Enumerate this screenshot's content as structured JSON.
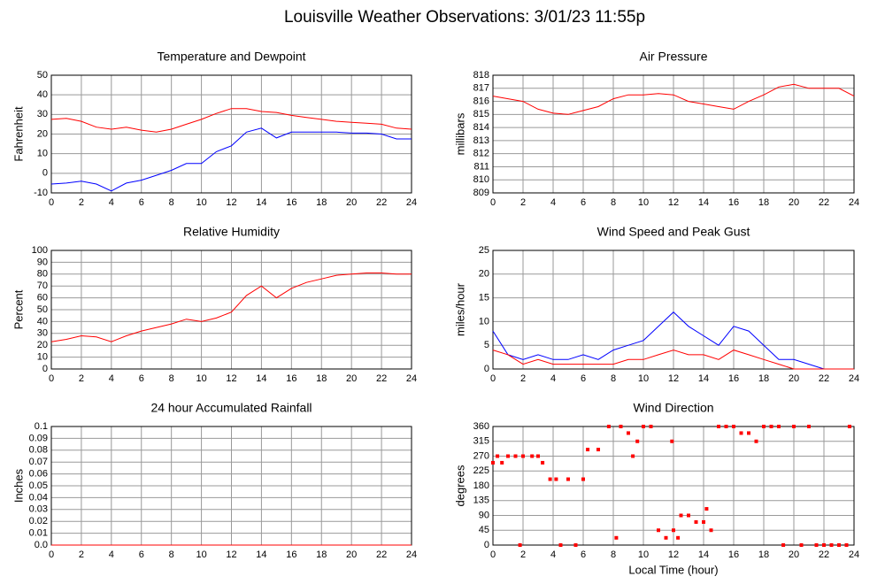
{
  "title": "Louisville Weather Observations: 3/01/23 11:55p",
  "xlabel": "Local Time (hour)",
  "chart_data": [
    {
      "type": "line",
      "title": "Temperature and Dewpoint",
      "ylabel": "Fahrenheit",
      "x": [
        0,
        1,
        2,
        3,
        4,
        5,
        6,
        7,
        8,
        9,
        10,
        11,
        12,
        13,
        14,
        15,
        16,
        17,
        18,
        19,
        20,
        21,
        22,
        23,
        24
      ],
      "series": [
        {
          "color": "#ff0000",
          "values": [
            27.5,
            28,
            26.5,
            23.5,
            22.5,
            23.5,
            22,
            21,
            22.5,
            25,
            27.5,
            30.5,
            33,
            33,
            31.5,
            31,
            29.5,
            28.5,
            27.5,
            26.5,
            26,
            25.5,
            25,
            23,
            22.5
          ]
        },
        {
          "color": "#0000ff",
          "values": [
            -5.5,
            -5,
            -4,
            -5.5,
            -9,
            -5,
            -3.5,
            -1,
            1.5,
            5,
            5,
            11,
            14,
            21,
            23,
            18,
            21,
            21,
            21,
            21,
            20.5,
            20.5,
            20,
            17.5,
            17.5
          ]
        }
      ],
      "xlim": [
        0,
        24
      ],
      "xticks": [
        0,
        2,
        4,
        6,
        8,
        10,
        12,
        14,
        16,
        18,
        20,
        22,
        24
      ],
      "ylim": [
        -10,
        50
      ],
      "yticks": [
        -10,
        0,
        10,
        20,
        30,
        40,
        50
      ],
      "grid": true
    },
    {
      "type": "line",
      "title": "Air Pressure",
      "ylabel": "millibars",
      "x": [
        0,
        1,
        2,
        3,
        4,
        5,
        6,
        7,
        8,
        9,
        10,
        11,
        12,
        13,
        14,
        15,
        16,
        17,
        18,
        19,
        20,
        21,
        22,
        23,
        24
      ],
      "series": [
        {
          "color": "#ff0000",
          "values": [
            816.4,
            816.2,
            816,
            815.4,
            815.1,
            815,
            815.3,
            815.6,
            816.2,
            816.5,
            816.5,
            816.6,
            816.5,
            816,
            815.8,
            815.6,
            815.4,
            816,
            816.5,
            817.1,
            817.3,
            817,
            817,
            817,
            816.4
          ]
        }
      ],
      "xlim": [
        0,
        24
      ],
      "xticks": [
        0,
        2,
        4,
        6,
        8,
        10,
        12,
        14,
        16,
        18,
        20,
        22,
        24
      ],
      "ylim": [
        809,
        818
      ],
      "yticks": [
        809,
        810,
        811,
        812,
        813,
        814,
        815,
        816,
        817,
        818
      ],
      "grid": true
    },
    {
      "type": "line",
      "title": "Relative Humidity",
      "ylabel": "Percent",
      "x": [
        0,
        1,
        2,
        3,
        4,
        5,
        6,
        7,
        8,
        9,
        10,
        11,
        12,
        13,
        14,
        15,
        16,
        17,
        18,
        19,
        20,
        21,
        22,
        23,
        24
      ],
      "series": [
        {
          "color": "#ff0000",
          "values": [
            23,
            25,
            28,
            27,
            23,
            28,
            32,
            35,
            38,
            42,
            40,
            43,
            48,
            62,
            70,
            60,
            68,
            73,
            76,
            79,
            80,
            81,
            81,
            80,
            80
          ]
        }
      ],
      "xlim": [
        0,
        24
      ],
      "xticks": [
        0,
        2,
        4,
        6,
        8,
        10,
        12,
        14,
        16,
        18,
        20,
        22,
        24
      ],
      "ylim": [
        0,
        100
      ],
      "yticks": [
        0,
        10,
        20,
        30,
        40,
        50,
        60,
        70,
        80,
        90,
        100
      ],
      "grid": true
    },
    {
      "type": "line",
      "title": "Wind Speed and Peak Gust",
      "ylabel": "miles/hour",
      "x": [
        0,
        1,
        2,
        3,
        4,
        5,
        6,
        7,
        8,
        9,
        10,
        11,
        12,
        13,
        14,
        15,
        16,
        17,
        18,
        19,
        20,
        21,
        22,
        23,
        24
      ],
      "series": [
        {
          "color": "#0000ff",
          "values": [
            8,
            3,
            2,
            3,
            2,
            2,
            3,
            2,
            4,
            5,
            6,
            9,
            12,
            9,
            7,
            5,
            9,
            8,
            5,
            2,
            2,
            1,
            0,
            0,
            0
          ]
        },
        {
          "color": "#ff0000",
          "values": [
            4,
            3,
            1,
            2,
            1,
            1,
            1,
            1,
            1,
            2,
            2,
            3,
            4,
            3,
            3,
            2,
            4,
            3,
            2,
            1,
            0,
            0,
            0,
            0,
            0
          ]
        }
      ],
      "xlim": [
        0,
        24
      ],
      "xticks": [
        0,
        2,
        4,
        6,
        8,
        10,
        12,
        14,
        16,
        18,
        20,
        22,
        24
      ],
      "ylim": [
        0,
        25
      ],
      "yticks": [
        0,
        5,
        10,
        15,
        20,
        25
      ],
      "grid": true
    },
    {
      "type": "line",
      "title": "24 hour Accumulated Rainfall",
      "ylabel": "Inches",
      "x": [
        0,
        24
      ],
      "series": [
        {
          "color": "#ff0000",
          "values": [
            0,
            0
          ]
        }
      ],
      "xlim": [
        0,
        24
      ],
      "xticks": [
        0,
        2,
        4,
        6,
        8,
        10,
        12,
        14,
        16,
        18,
        20,
        22,
        24
      ],
      "ylim": [
        0,
        0.1
      ],
      "yticks": [
        {
          "value": 0,
          "label": "0.0"
        },
        0.01,
        0.02,
        0.03,
        0.04,
        0.05,
        0.06,
        0.07,
        0.08,
        0.09,
        0.1
      ],
      "grid": true
    },
    {
      "type": "scatter",
      "title": "Wind Direction",
      "ylabel": "degrees",
      "x": [
        0,
        0.3,
        0.6,
        1,
        1.5,
        1.8,
        2,
        2.6,
        3,
        3.3,
        3.8,
        4.2,
        4.5,
        5,
        5.5,
        6,
        6.3,
        7,
        7.7,
        8.2,
        8.5,
        9,
        9.3,
        9.6,
        10,
        10.5,
        11,
        11.5,
        11.9,
        12,
        12.3,
        12.5,
        13,
        13.5,
        14,
        14.2,
        14.5,
        15,
        15.5,
        16,
        16.5,
        17,
        17.5,
        18,
        18.5,
        19,
        19.3,
        20,
        20.5,
        21,
        21.5,
        22,
        22.5,
        23,
        23.5,
        23.7
      ],
      "series": [
        {
          "color": "#ff0000",
          "values": [
            250,
            270,
            250,
            270,
            270,
            0,
            270,
            270,
            270,
            250,
            200,
            200,
            0,
            200,
            0,
            200,
            290,
            290,
            360,
            22,
            360,
            340,
            270,
            315,
            360,
            360,
            45,
            22,
            315,
            45,
            22,
            90,
            90,
            70,
            70,
            110,
            45,
            360,
            360,
            360,
            340,
            340,
            315,
            360,
            360,
            360,
            0,
            360,
            0,
            360,
            0,
            0,
            0,
            0,
            0,
            360
          ]
        }
      ],
      "xlim": [
        0,
        24
      ],
      "xticks": [
        0,
        2,
        4,
        6,
        8,
        10,
        12,
        14,
        16,
        18,
        20,
        22,
        24
      ],
      "ylim": [
        0,
        360
      ],
      "yticks": [
        0,
        45,
        90,
        135,
        180,
        225,
        270,
        315,
        360
      ],
      "grid": true
    }
  ]
}
